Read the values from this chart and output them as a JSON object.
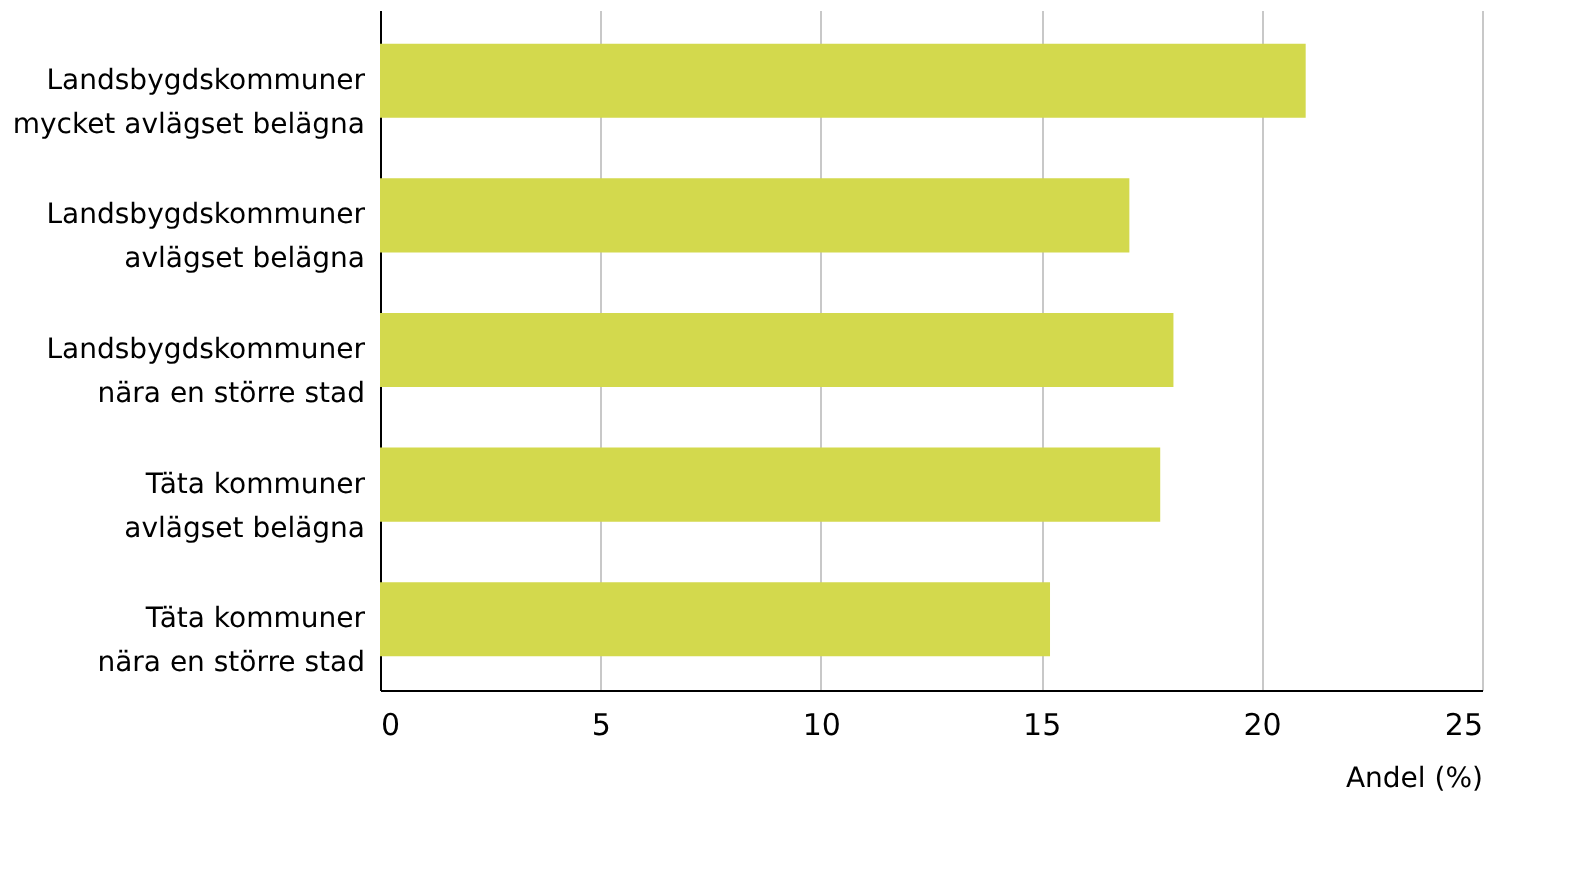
{
  "chart_data": {
    "type": "bar",
    "orientation": "horizontal",
    "categories": [
      "Landsbygdskommuner\nmycket avlägset belägna",
      "Landsbygdskommuner\navlägset belägna",
      "Landsbygdskommuner\nnära en större stad",
      "Täta kommuner\navlägset belägna",
      "Täta kommuner\nnära en större stad"
    ],
    "values": [
      21.0,
      17.0,
      18.0,
      17.7,
      15.2
    ],
    "color": "#d3d94d",
    "xlim": [
      0,
      25
    ],
    "xticks": [
      0,
      5,
      10,
      15,
      20,
      25
    ],
    "xlabel": "Andel (%)",
    "grid": "x"
  }
}
